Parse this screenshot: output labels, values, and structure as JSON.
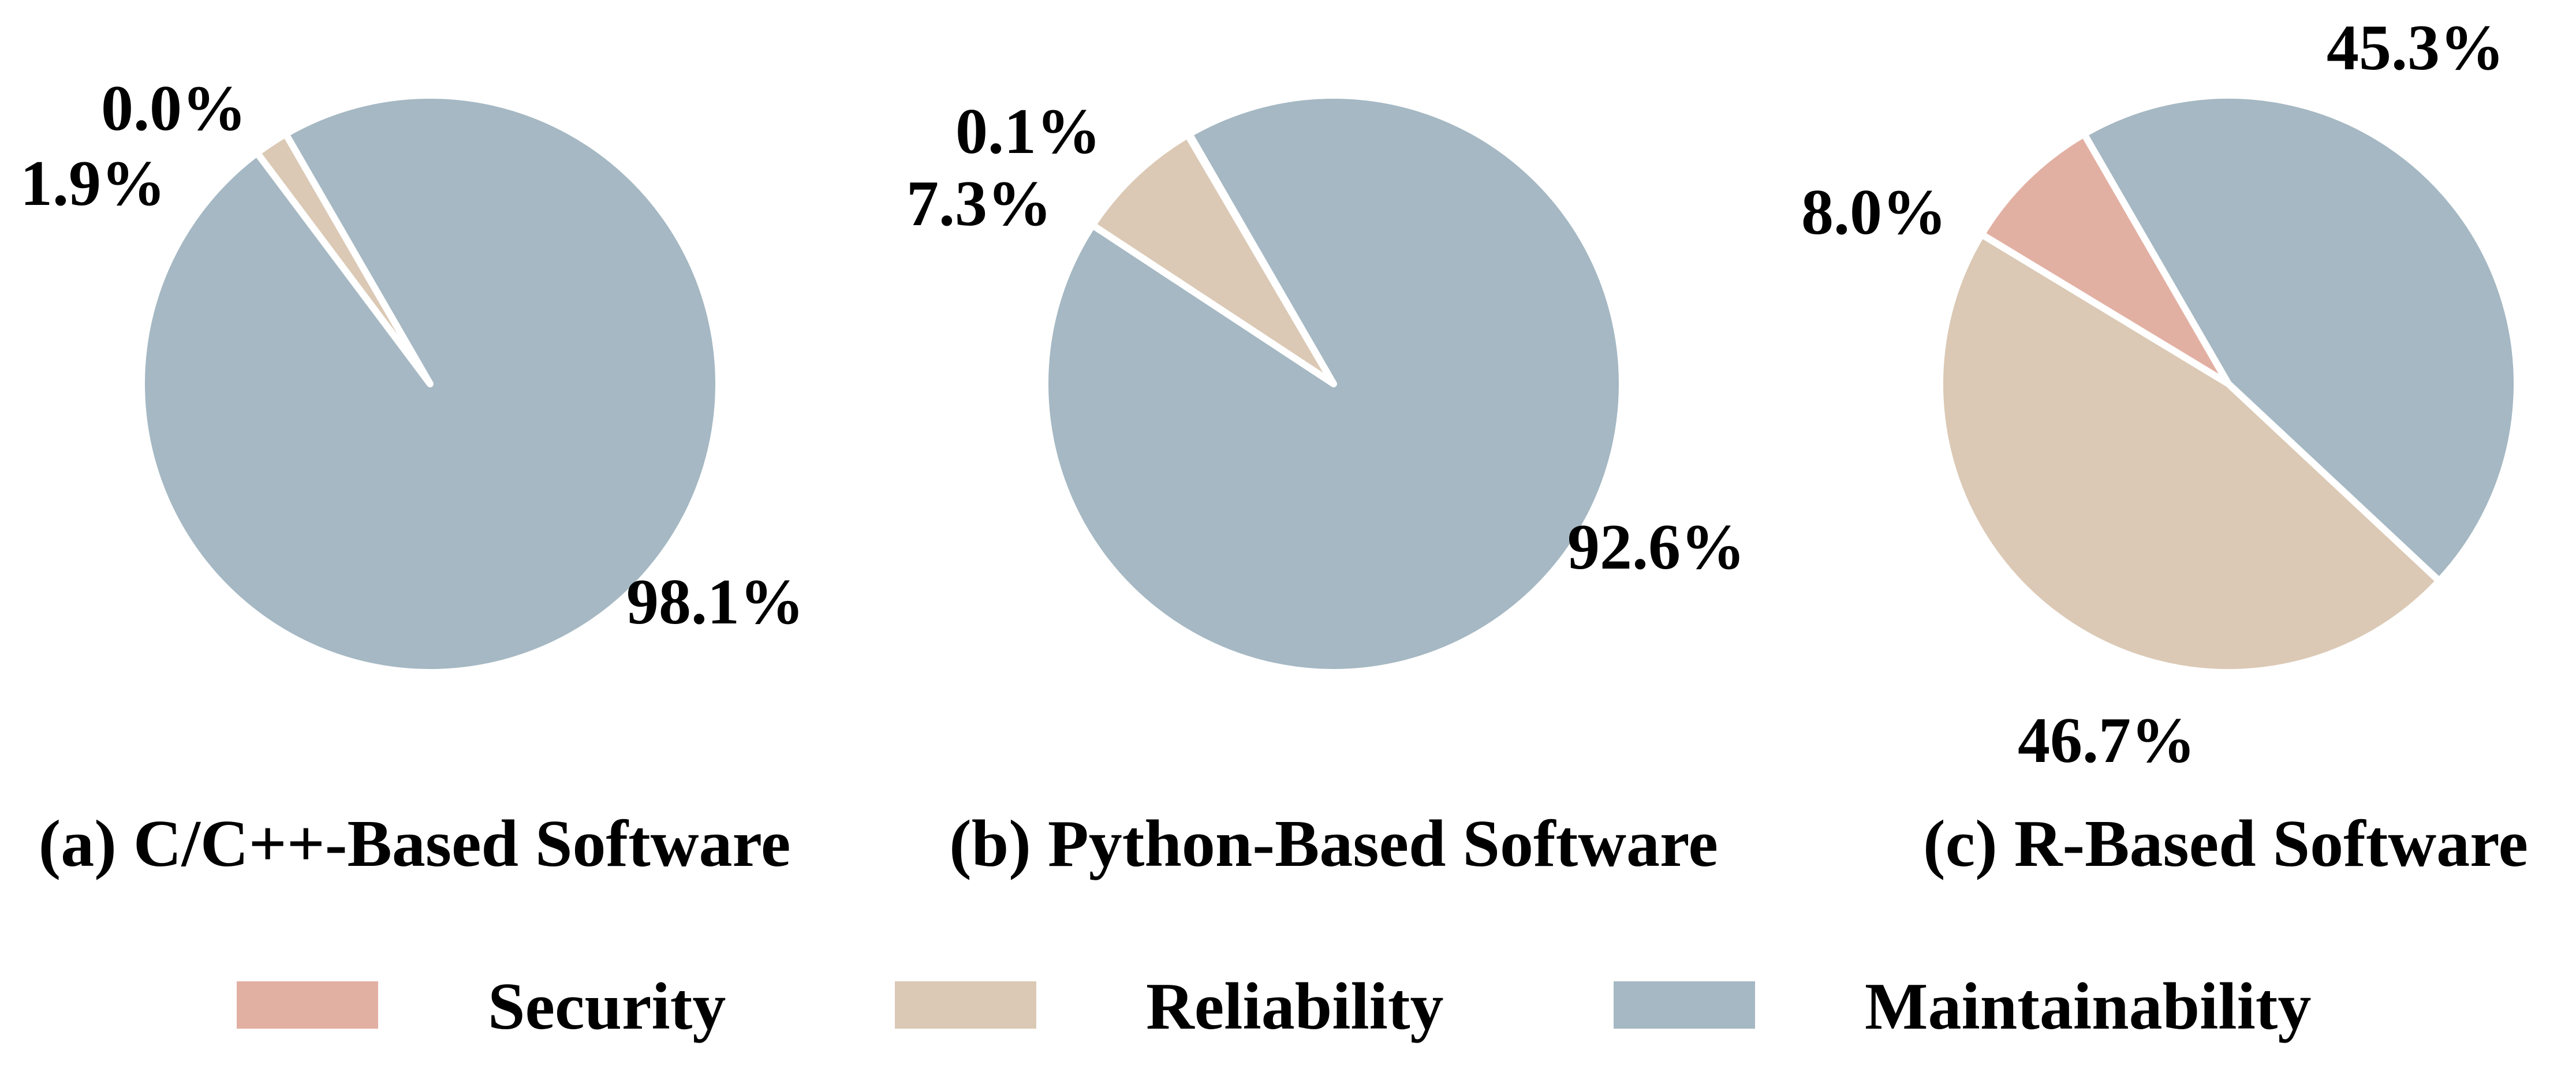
{
  "chart_data": [
    {
      "type": "pie",
      "title": "(a) C/C++-Based Software",
      "slices": [
        {
          "label": "Security",
          "value": 0.0,
          "display": "0.0%"
        },
        {
          "label": "Reliability",
          "value": 1.9,
          "display": "1.9%"
        },
        {
          "label": "Maintainability",
          "value": 98.1,
          "display": "98.1%"
        }
      ]
    },
    {
      "type": "pie",
      "title": "(b) Python-Based Software",
      "slices": [
        {
          "label": "Security",
          "value": 0.1,
          "display": "0.1%"
        },
        {
          "label": "Reliability",
          "value": 7.3,
          "display": "7.3%"
        },
        {
          "label": "Maintainability",
          "value": 92.6,
          "display": "92.6%"
        }
      ]
    },
    {
      "type": "pie",
      "title": "(c) R-Based Software",
      "slices": [
        {
          "label": "Security",
          "value": 8.0,
          "display": "8.0%"
        },
        {
          "label": "Reliability",
          "value": 46.7,
          "display": "46.7%"
        },
        {
          "label": "Maintainability",
          "value": 45.3,
          "display": "45.3%"
        }
      ]
    }
  ],
  "legend": {
    "placement": "bottom",
    "items": [
      {
        "label": "Security",
        "color": "#e2b0a3"
      },
      {
        "label": "Reliability",
        "color": "#dbc9b5"
      },
      {
        "label": "Maintainability",
        "color": "#a5b8c3"
      }
    ]
  },
  "colors": {
    "Security": "#e2b0a3",
    "Reliability": "#dbc9b5",
    "Maintainability": "#a5b8c3",
    "separator": "#ffffff"
  }
}
